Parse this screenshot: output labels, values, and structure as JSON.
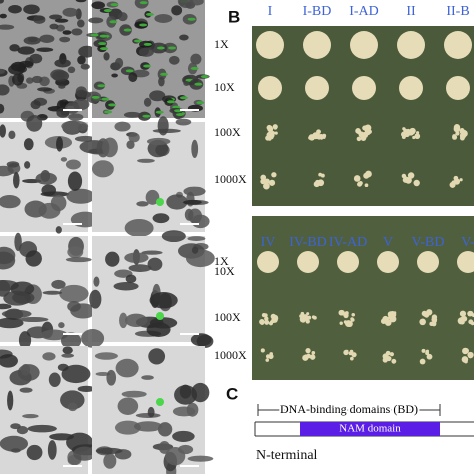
{
  "panel_b": {
    "label": "B",
    "plate_1": {
      "columns": [
        "I",
        "I-BD",
        "I-AD",
        "II",
        "II-B"
      ],
      "rows": [
        "1X",
        "10X",
        "100X",
        "1000X"
      ]
    },
    "plate_2": {
      "columns": [
        "IV",
        "IV-BD",
        "IV-AD",
        "V",
        "V-BD",
        "V-"
      ],
      "rows": [
        "1X",
        "10X",
        "100X",
        "1000X"
      ]
    }
  },
  "panel_c": {
    "label": "C",
    "bracket_label": "DNA-binding domains (BD)",
    "domain": "NAM domain",
    "terminus": "N-terminal"
  }
}
